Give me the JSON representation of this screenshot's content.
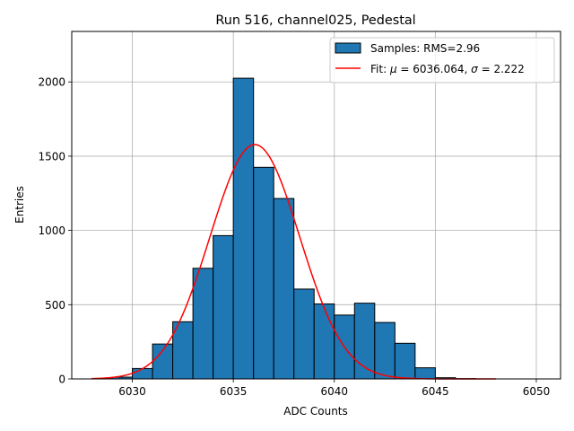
{
  "chart_data": {
    "type": "bar",
    "title": "Run 516, channel025, Pedestal",
    "xlabel": "ADC Counts",
    "ylabel": "Entries",
    "xlim": [
      6027.0,
      6051.2
    ],
    "ylim": [
      0,
      2340
    ],
    "xticks": [
      6030,
      6035,
      6040,
      6045,
      6050
    ],
    "yticks": [
      0,
      500,
      1000,
      1500,
      2000
    ],
    "grid": true,
    "legend_position": "top-right",
    "histogram": {
      "name": "Samples: RMS=2.96",
      "color": "#1f77b4",
      "bin_edges": [
        6028,
        6029,
        6030,
        6031,
        6032,
        6033,
        6034,
        6035,
        6036,
        6037,
        6038,
        6039,
        6040,
        6041,
        6042,
        6043,
        6044,
        6045,
        6046,
        6047,
        6048
      ],
      "counts": [
        2,
        12,
        70,
        235,
        385,
        745,
        965,
        2025,
        1425,
        1215,
        605,
        505,
        430,
        510,
        380,
        240,
        75,
        8,
        2,
        0
      ]
    },
    "fit": {
      "name": "Fit: μ = 6036.064, σ = 2.222",
      "legend_parts": [
        "Fit: ",
        "μ",
        " = 6036.064, ",
        "σ",
        " = 2.222"
      ],
      "color": "#ff0000",
      "mu": 6036.064,
      "sigma": 2.222,
      "amplitude": 1578,
      "x_range": [
        6028,
        6048
      ]
    }
  }
}
